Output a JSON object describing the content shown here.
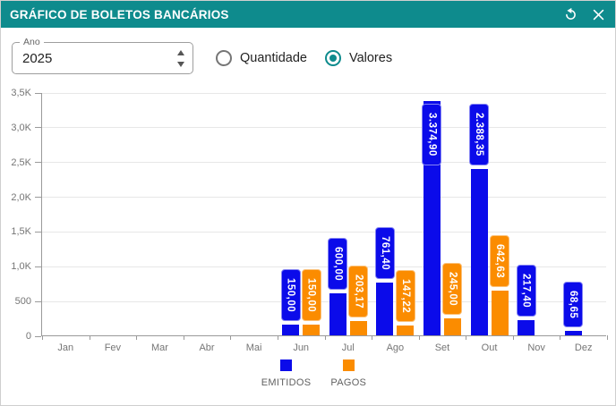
{
  "window": {
    "title": "GRÁFICO DE BOLETOS BANCÁRIOS",
    "icons": {
      "refresh": "refresh-icon",
      "close": "close-icon"
    }
  },
  "controls": {
    "year_label": "Ano",
    "year_value": "2025",
    "radios": [
      {
        "label": "Quantidade",
        "selected": false
      },
      {
        "label": "Valores",
        "selected": true
      }
    ]
  },
  "colors": {
    "header_bg": "#0E8B8D",
    "accent": "#0E8B8D",
    "emitidos": "#0B0BEA",
    "emitidos_border": "#8585F3",
    "pagos": "#FB8C00",
    "pagos_border": "#FBC27B",
    "gridline": "#e7e7e7",
    "axis": "#9a9a9a",
    "tick_text": "#757575"
  },
  "chart_data": {
    "type": "bar",
    "title": "",
    "categories": [
      "Jan",
      "Fev",
      "Mar",
      "Abr",
      "Mai",
      "Jun",
      "Jul",
      "Ago",
      "Set",
      "Out",
      "Nov",
      "Dez"
    ],
    "series": [
      {
        "name": "EMITIDOS",
        "color": "#0B0BEA",
        "border": "#8585F3",
        "values": [
          0,
          0,
          0,
          0,
          0,
          150.0,
          600.0,
          761.4,
          3374.9,
          2388.35,
          217.4,
          68.65
        ],
        "labels": [
          "",
          "",
          "",
          "",
          "",
          "150,00",
          "600,00",
          "761,40",
          "3.374,90",
          "2.388,35",
          "217,40",
          "68,65"
        ]
      },
      {
        "name": "PAGOS",
        "color": "#FB8C00",
        "border": "#FBC27B",
        "values": [
          0,
          0,
          0,
          0,
          0,
          150.0,
          203.17,
          147.22,
          245.0,
          642.63,
          0,
          0
        ],
        "labels": [
          "",
          "",
          "",
          "",
          "",
          "150,00",
          "203,17",
          "147,22",
          "245,00",
          "642,63",
          "",
          ""
        ]
      }
    ],
    "ylim": [
      0,
      3500
    ],
    "y_ticks": [
      {
        "value": 0,
        "label": "0"
      },
      {
        "value": 500,
        "label": "500"
      },
      {
        "value": 1000,
        "label": "1,0K"
      },
      {
        "value": 1500,
        "label": "1,5K"
      },
      {
        "value": 2000,
        "label": "2,0K"
      },
      {
        "value": 2500,
        "label": "2,5K"
      },
      {
        "value": 3000,
        "label": "3,0K"
      },
      {
        "value": 3500,
        "label": "3,5K"
      }
    ],
    "grid": true,
    "legend_position": "bottom",
    "xlabel": "",
    "ylabel": ""
  }
}
